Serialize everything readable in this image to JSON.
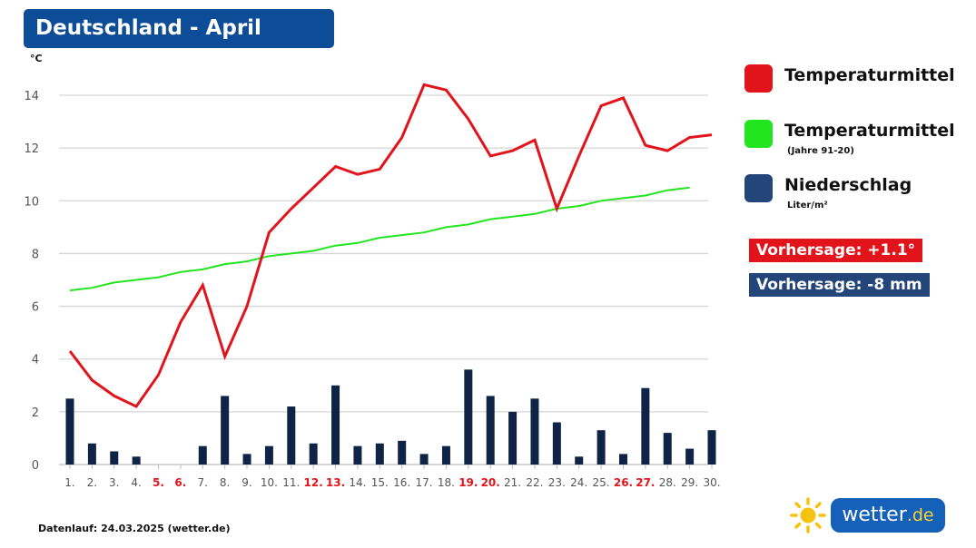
{
  "header": {
    "title": "Deutschland - April"
  },
  "legend": {
    "items": [
      {
        "label": "Temperaturmittel",
        "sub": "",
        "color": "#e2141b"
      },
      {
        "label": "Temperaturmittel",
        "sub": "(Jahre 91-20)",
        "color": "#22e51f"
      },
      {
        "label": "Niederschlag",
        "sub": "Liter/m²",
        "color": "#23457a"
      }
    ]
  },
  "badges": {
    "temp": {
      "text": "Vorhersage: +1.1°",
      "color": "#e2141b"
    },
    "rain": {
      "text": "Vorhersage: -8 mm",
      "color": "#23457a"
    }
  },
  "footer": {
    "text": "Datenlauf: 24.03.2025 (wetter.de)"
  },
  "logo": {
    "text": "wetter",
    "tld": ".de",
    "icon": "sun-icon"
  },
  "chart_data": {
    "type": "line",
    "ylabel": "°C",
    "ylim": [
      0,
      14
    ],
    "yticks": [
      0,
      2,
      4,
      6,
      8,
      10,
      12,
      14
    ],
    "grid": true,
    "legend_position": "right",
    "categories": [
      "1.",
      "2.",
      "3.",
      "4.",
      "5.",
      "6.",
      "7.",
      "8.",
      "9.",
      "10.",
      "11.",
      "12.",
      "13.",
      "14.",
      "15.",
      "16.",
      "17.",
      "18.",
      "19.",
      "20.",
      "21.",
      "22.",
      "23.",
      "24.",
      "25.",
      "26.",
      "27.",
      "28.",
      "29.",
      "30."
    ],
    "weekend_days": [
      "5.",
      "6.",
      "12.",
      "13.",
      "19.",
      "20.",
      "26.",
      "27."
    ],
    "weekend_color": "#e2141b",
    "series": [
      {
        "name": "Temperaturmittel",
        "type": "line",
        "color": "#e2141b",
        "values": [
          4.3,
          3.2,
          2.6,
          2.2,
          3.4,
          5.4,
          6.8,
          4.1,
          6.0,
          8.8,
          9.7,
          10.5,
          11.3,
          11.0,
          11.2,
          12.4,
          14.4,
          14.2,
          13.1,
          11.7,
          11.9,
          12.3,
          9.7,
          11.7,
          13.6,
          13.9,
          12.1,
          11.9,
          12.4,
          12.5
        ]
      },
      {
        "name": "Temperaturmittel (Jahre 91-20)",
        "type": "line",
        "color": "#22e51f",
        "values": [
          6.6,
          6.7,
          6.9,
          7.0,
          7.1,
          7.3,
          7.4,
          7.6,
          7.7,
          7.9,
          8.0,
          8.1,
          8.3,
          8.4,
          8.6,
          8.7,
          8.8,
          9.0,
          9.1,
          9.3,
          9.4,
          9.5,
          9.7,
          9.8,
          10.0,
          10.1,
          10.2,
          10.4,
          10.5,
          null
        ]
      },
      {
        "name": "Niederschlag",
        "type": "bar",
        "color": "#0e2346",
        "values": [
          2.5,
          0.8,
          0.5,
          0.3,
          0.0,
          0.0,
          0.7,
          2.6,
          0.4,
          0.7,
          2.2,
          0.8,
          3.0,
          0.7,
          0.8,
          0.9,
          0.4,
          0.7,
          3.6,
          2.6,
          2.0,
          2.5,
          1.6,
          0.3,
          1.3,
          0.4,
          2.9,
          1.2,
          0.6,
          1.3
        ]
      }
    ]
  }
}
